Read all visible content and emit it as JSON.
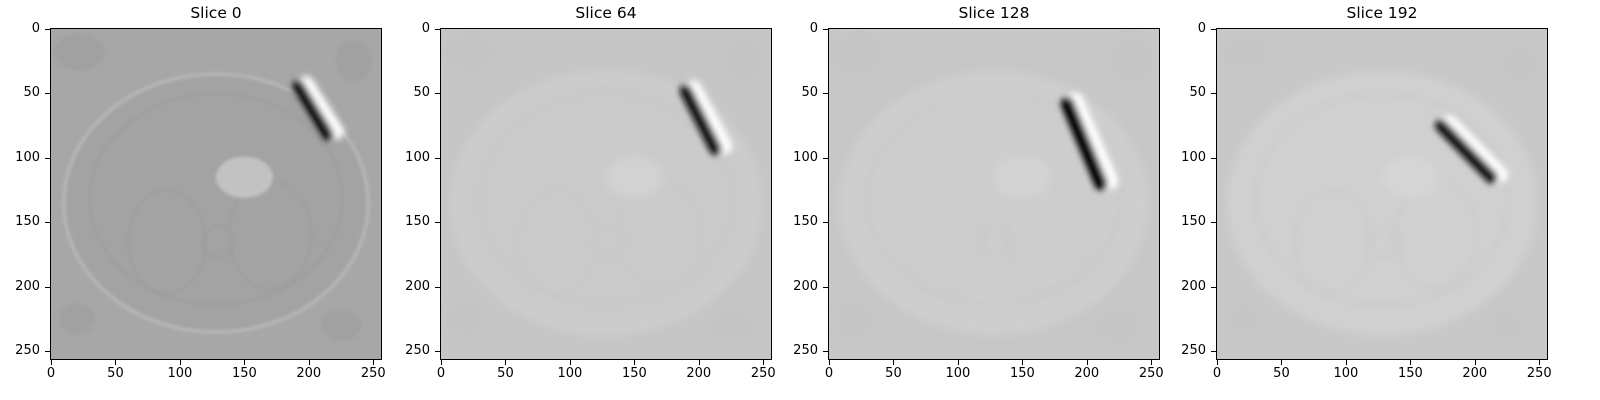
{
  "figure": {
    "panels": [
      {
        "title": "Slice 0",
        "bg": "#a7a7a7",
        "body": "#a3a3a3",
        "edge": "#bcbcbc",
        "ring": "#9c9c9c",
        "spot": "#c2c2c2",
        "dark": "#050505",
        "bright": "#ffffff",
        "artifact": {
          "x1": 192,
          "y1": 44,
          "x2": 215,
          "y2": 82,
          "width": 11
        },
        "xticks": [
          "0",
          "50",
          "100",
          "150",
          "200",
          "250"
        ],
        "yticks": [
          "0",
          "50",
          "100",
          "150",
          "200",
          "250"
        ]
      },
      {
        "title": "Slice 64",
        "bg": "#c6c6c6",
        "body": "#cbcbcb",
        "edge": "#d6d6d6",
        "ring": "#c2c2c2",
        "spot": "#d2d2d2",
        "dark": "#0a0a0a",
        "bright": "#ffffff",
        "artifact": {
          "x1": 190,
          "y1": 48,
          "x2": 213,
          "y2": 93,
          "width": 12
        },
        "xticks": [
          "0",
          "50",
          "100",
          "150",
          "200",
          "250"
        ],
        "yticks": [
          "0",
          "50",
          "100",
          "150",
          "200",
          "250"
        ]
      },
      {
        "title": "Slice 128",
        "bg": "#c7c7c7",
        "body": "#cdcdcd",
        "edge": "#d4d4d4",
        "ring": "#c4c4c4",
        "spot": "#d3d3d3",
        "dark": "#050505",
        "bright": "#ffffff",
        "artifact": {
          "x1": 185,
          "y1": 58,
          "x2": 211,
          "y2": 120,
          "width": 13
        },
        "xticks": [
          "0",
          "50",
          "100",
          "150",
          "200",
          "250"
        ],
        "yticks": [
          "0",
          "50",
          "100",
          "150",
          "200",
          "250"
        ]
      },
      {
        "title": "Slice 192",
        "bg": "#c8c8c8",
        "body": "#d0d0d0",
        "edge": "#d7d7d7",
        "ring": "#c5c5c5",
        "spot": "#d6d6d6",
        "dark": "#0a0a0a",
        "bright": "#ffffff",
        "artifact": {
          "x1": 174,
          "y1": 75,
          "x2": 213,
          "y2": 115,
          "width": 12
        },
        "xticks": [
          "0",
          "50",
          "100",
          "150",
          "200",
          "250"
        ],
        "yticks": [
          "0",
          "50",
          "100",
          "150",
          "200",
          "250"
        ]
      }
    ]
  }
}
